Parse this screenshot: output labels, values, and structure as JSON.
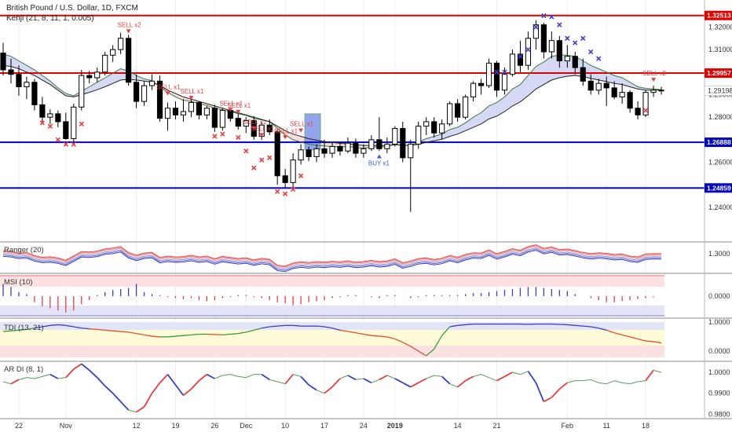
{
  "header": {
    "symbol": "British Pound / U.S. Dollar, 1D, FXCM",
    "indicator": "Kenji (21, 8, 11, 1, 0.005)"
  },
  "colors": {
    "bull": "#000000",
    "bear": "#000000",
    "red_line": "#e00000",
    "blue_line": "#0000c0",
    "sell_signal": "#e04040",
    "buy_signal": "#4060c0",
    "cross_red": "#e04040",
    "cross_blue": "#4040c0",
    "grid": "#eeeeee"
  },
  "chart_data": {
    "type": "candlestick",
    "price_axis": {
      "min": 1.225,
      "max": 1.332,
      "ticks": [
        "1.32000",
        "1.31000",
        "1.29000",
        "1.28000",
        "1.26000",
        "1.24000"
      ]
    },
    "x_axis": {
      "labels": [
        "22",
        "Nov",
        "12",
        "19",
        "26",
        "Dec",
        "10",
        "17",
        "24",
        "2019",
        "14",
        "21",
        "Feb",
        "11",
        "18"
      ],
      "label_positions": [
        2,
        8,
        17,
        22,
        27,
        31,
        36,
        41,
        46,
        50,
        58,
        63,
        72,
        77,
        82
      ]
    },
    "candles": [
      [
        1.3085,
        1.313,
        1.2985,
        1.301
      ],
      [
        1.301,
        1.306,
        1.295,
        1.299
      ],
      [
        1.299,
        1.303,
        1.2895,
        1.2935
      ],
      [
        1.2935,
        1.298,
        1.288,
        1.2955
      ],
      [
        1.2955,
        1.297,
        1.283,
        1.2855
      ],
      [
        1.2855,
        1.289,
        1.278,
        1.28
      ],
      [
        1.28,
        1.2835,
        1.277,
        1.2815
      ],
      [
        1.2815,
        1.283,
        1.2755,
        1.278
      ],
      [
        1.278,
        1.282,
        1.27,
        1.2705
      ],
      [
        1.2705,
        1.286,
        1.269,
        1.2845
      ],
      [
        1.2845,
        1.301,
        1.283,
        1.2985
      ],
      [
        1.2985,
        1.3005,
        1.295,
        1.2975
      ],
      [
        1.2975,
        1.302,
        1.2955,
        1.3
      ],
      [
        1.3,
        1.309,
        1.2985,
        1.3075
      ],
      [
        1.3075,
        1.312,
        1.3045,
        1.31
      ],
      [
        1.31,
        1.3175,
        1.308,
        1.315
      ],
      [
        1.315,
        1.3165,
        1.294,
        1.2955
      ],
      [
        1.2955,
        1.299,
        1.284,
        1.287
      ],
      [
        1.287,
        1.296,
        1.285,
        1.294
      ],
      [
        1.294,
        1.299,
        1.292,
        1.296
      ],
      [
        1.296,
        1.2985,
        1.278,
        1.2795
      ],
      [
        1.2795,
        1.2865,
        1.274,
        1.284
      ],
      [
        1.284,
        1.287,
        1.279,
        1.281
      ],
      [
        1.281,
        1.288,
        1.278,
        1.2825
      ],
      [
        1.2825,
        1.2895,
        1.28,
        1.2865
      ],
      [
        1.2865,
        1.287,
        1.279,
        1.281
      ],
      [
        1.281,
        1.285,
        1.279,
        1.284
      ],
      [
        1.284,
        1.2855,
        1.2735,
        1.2755
      ],
      [
        1.2755,
        1.284,
        1.274,
        1.283
      ],
      [
        1.283,
        1.284,
        1.278,
        1.2795
      ],
      [
        1.2795,
        1.283,
        1.2745,
        1.276
      ],
      [
        1.276,
        1.28,
        1.273,
        1.2785
      ],
      [
        1.2785,
        1.2805,
        1.27,
        1.2715
      ],
      [
        1.2715,
        1.278,
        1.27,
        1.2765
      ],
      [
        1.2765,
        1.279,
        1.272,
        1.2735
      ],
      [
        1.2735,
        1.2745,
        1.25,
        1.254
      ],
      [
        1.254,
        1.257,
        1.2485,
        1.251
      ],
      [
        1.251,
        1.264,
        1.249,
        1.261
      ],
      [
        1.261,
        1.268,
        1.259,
        1.2655
      ],
      [
        1.2655,
        1.267,
        1.2605,
        1.2625
      ],
      [
        1.2625,
        1.268,
        1.26,
        1.266
      ],
      [
        1.266,
        1.27,
        1.262,
        1.264
      ],
      [
        1.264,
        1.269,
        1.262,
        1.267
      ],
      [
        1.267,
        1.269,
        1.263,
        1.265
      ],
      [
        1.265,
        1.271,
        1.264,
        1.2685
      ],
      [
        1.2685,
        1.2705,
        1.262,
        1.264
      ],
      [
        1.264,
        1.268,
        1.262,
        1.266
      ],
      [
        1.266,
        1.272,
        1.265,
        1.27
      ],
      [
        1.27,
        1.28,
        1.265,
        1.266
      ],
      [
        1.266,
        1.271,
        1.264,
        1.268
      ],
      [
        1.268,
        1.276,
        1.267,
        1.275
      ],
      [
        1.275,
        1.278,
        1.26,
        1.262
      ],
      [
        1.262,
        1.27,
        1.238,
        1.268
      ],
      [
        1.268,
        1.278,
        1.266,
        1.276
      ],
      [
        1.276,
        1.28,
        1.272,
        1.278
      ],
      [
        1.278,
        1.28,
        1.271,
        1.273
      ],
      [
        1.273,
        1.279,
        1.27,
        1.277
      ],
      [
        1.277,
        1.287,
        1.276,
        1.286
      ],
      [
        1.286,
        1.288,
        1.278,
        1.28
      ],
      [
        1.28,
        1.29,
        1.279,
        1.289
      ],
      [
        1.289,
        1.296,
        1.287,
        1.295
      ],
      [
        1.295,
        1.297,
        1.29,
        1.294
      ],
      [
        1.294,
        1.306,
        1.293,
        1.304
      ],
      [
        1.304,
        1.305,
        1.289,
        1.292
      ],
      [
        1.292,
        1.302,
        1.29,
        1.299
      ],
      [
        1.299,
        1.31,
        1.298,
        1.308
      ],
      [
        1.308,
        1.314,
        1.3,
        1.303
      ],
      [
        1.303,
        1.318,
        1.301,
        1.315
      ],
      [
        1.315,
        1.323,
        1.31,
        1.321
      ],
      [
        1.321,
        1.322,
        1.306,
        1.309
      ],
      [
        1.309,
        1.318,
        1.306,
        1.314
      ],
      [
        1.314,
        1.316,
        1.302,
        1.305
      ],
      [
        1.305,
        1.312,
        1.302,
        1.307
      ],
      [
        1.307,
        1.309,
        1.299,
        1.302
      ],
      [
        1.302,
        1.306,
        1.294,
        1.296
      ],
      [
        1.296,
        1.299,
        1.29,
        1.292
      ],
      [
        1.292,
        1.297,
        1.29,
        1.295
      ],
      [
        1.295,
        1.298,
        1.285,
        1.293
      ],
      [
        1.293,
        1.296,
        1.288,
        1.289
      ],
      [
        1.289,
        1.295,
        1.286,
        1.291
      ],
      [
        1.291,
        1.292,
        1.282,
        1.284
      ],
      [
        1.284,
        1.287,
        1.279,
        1.281
      ],
      [
        1.281,
        1.292,
        1.28,
        1.291
      ],
      [
        1.291,
        1.294,
        1.289,
        1.292
      ],
      [
        1.292,
        1.2935,
        1.29,
        1.2918
      ]
    ],
    "kenji_fast": [
      1.308,
      1.307,
      1.305,
      1.303,
      1.301,
      1.2985,
      1.296,
      1.293,
      1.2905,
      1.2895,
      1.2915,
      1.2935,
      1.2955,
      1.2975,
      1.2995,
      1.3015,
      1.3005,
      1.2985,
      1.297,
      1.2962,
      1.2935,
      1.291,
      1.289,
      1.2875,
      1.287,
      1.286,
      1.2852,
      1.284,
      1.2832,
      1.2825,
      1.2815,
      1.2808,
      1.2795,
      1.2788,
      1.278,
      1.275,
      1.272,
      1.27,
      1.269,
      1.268,
      1.2675,
      1.2672,
      1.267,
      1.2668,
      1.267,
      1.2665,
      1.2662,
      1.2668,
      1.2668,
      1.267,
      1.268,
      1.2675,
      1.2675,
      1.269,
      1.2705,
      1.2715,
      1.2725,
      1.2745,
      1.2755,
      1.2775,
      1.28,
      1.282,
      1.285,
      1.2865,
      1.289,
      1.2925,
      1.2945,
      1.2985,
      1.3025,
      1.3045,
      1.307,
      1.3075,
      1.3075,
      1.307,
      1.305,
      1.303,
      1.3015,
      1.3,
      1.2985,
      1.2975,
      1.2955,
      1.2935,
      1.2928,
      1.2925,
      1.2922
    ],
    "kenji_slow": [
      1.303,
      1.3025,
      1.3015,
      1.3,
      1.2985,
      1.2965,
      1.2945,
      1.292,
      1.2895,
      1.289,
      1.29,
      1.291,
      1.2922,
      1.2935,
      1.295,
      1.2965,
      1.2968,
      1.2965,
      1.296,
      1.2955,
      1.294,
      1.292,
      1.2905,
      1.289,
      1.288,
      1.287,
      1.286,
      1.285,
      1.284,
      1.283,
      1.282,
      1.281,
      1.28,
      1.279,
      1.278,
      1.276,
      1.274,
      1.2725,
      1.2715,
      1.2705,
      1.2698,
      1.2692,
      1.2688,
      1.2684,
      1.2682,
      1.2678,
      1.2675,
      1.2675,
      1.2674,
      1.2674,
      1.2678,
      1.2676,
      1.2675,
      1.268,
      1.2688,
      1.2695,
      1.2702,
      1.2715,
      1.2725,
      1.274,
      1.2755,
      1.277,
      1.2792,
      1.2805,
      1.2825,
      1.285,
      1.2868,
      1.2895,
      1.2925,
      1.2945,
      1.2965,
      1.2975,
      1.2982,
      1.2985,
      1.298,
      1.2972,
      1.2965,
      1.2958,
      1.295,
      1.2945,
      1.2935,
      1.2925,
      1.292,
      1.292,
      1.2921
    ],
    "levels": [
      {
        "price": 1.32513,
        "label": "1.32513",
        "color": "red"
      },
      {
        "price": 1.29957,
        "label": "1.29957",
        "color": "red"
      },
      {
        "price": 1.26888,
        "label": "1.26888",
        "color": "blue"
      },
      {
        "price": 1.24859,
        "label": "1.24859",
        "color": "blue"
      }
    ],
    "current_price_label": "1.29198",
    "signals": [
      {
        "index": 16,
        "text": "SELL x2",
        "price": 1.32,
        "type": "sell"
      },
      {
        "index": 21,
        "text": "SELL x1",
        "price": 1.2925,
        "type": "sell"
      },
      {
        "index": 24,
        "text": "SELL x1",
        "price": 1.2905,
        "type": "sell"
      },
      {
        "index": 29,
        "text": "SELL x1",
        "price": 1.2852,
        "type": "sell"
      },
      {
        "index": 30,
        "text": "SELL x1",
        "price": 1.2843,
        "type": "sell"
      },
      {
        "index": 32,
        "text": "SELL x1",
        "price": 1.277,
        "type": "sell"
      },
      {
        "index": 33,
        "text": "SELL x1",
        "price": 1.274,
        "type": "sell"
      },
      {
        "index": 36,
        "text": "SELL x1",
        "price": 1.273,
        "type": "sell"
      },
      {
        "index": 38,
        "text": "SELL x1",
        "price": 1.276,
        "type": "sell"
      },
      {
        "index": 48,
        "text": "BUY x1",
        "price": 1.2635,
        "type": "buy"
      },
      {
        "index": 83,
        "text": "SELL x2",
        "price": 1.2985,
        "type": "sell"
      }
    ],
    "highlight_boxes": [
      {
        "start": 39,
        "end": 40,
        "top": 1.2815,
        "bottom": 1.2655
      }
    ],
    "red_crosses": [
      [
        5,
        1.2775
      ],
      [
        6,
        1.276
      ],
      [
        7,
        1.27
      ],
      [
        8,
        1.268
      ],
      [
        9,
        1.268
      ],
      [
        10,
        1.277
      ],
      [
        27,
        1.2715
      ],
      [
        28,
        1.2725
      ],
      [
        30,
        1.271
      ],
      [
        31,
        1.265
      ],
      [
        32,
        1.2575
      ],
      [
        33,
        1.261
      ],
      [
        34,
        1.262
      ],
      [
        35,
        1.247
      ],
      [
        36,
        1.246
      ],
      [
        37,
        1.248
      ],
      [
        38,
        1.254
      ],
      [
        82,
        1.283
      ]
    ],
    "blue_crosses": [
      [
        63,
        1.3
      ],
      [
        64,
        1.3
      ],
      [
        66,
        1.307
      ],
      [
        67,
        1.31
      ],
      [
        68,
        1.32
      ],
      [
        69,
        1.325
      ],
      [
        70,
        1.3245
      ],
      [
        71,
        1.321
      ],
      [
        72,
        1.315
      ],
      [
        73,
        1.313
      ],
      [
        74,
        1.315
      ],
      [
        75,
        1.309
      ],
      [
        76,
        1.306
      ]
    ],
    "panes": {
      "ranger": {
        "title": "Ranger (20)",
        "tick": "1.3000"
      },
      "msi": {
        "title": "MSI (10)",
        "tick": "0.0000"
      },
      "tdi": {
        "title": "TDI (13, 21)",
        "ticks": [
          "1.0000",
          "0.0000"
        ]
      },
      "ardi": {
        "title": "AR DI (8, 1)",
        "ticks": [
          "1.0000",
          "0.9900",
          "0.9800"
        ]
      }
    },
    "msi_values": [
      0.6,
      0.45,
      0.2,
      0.1,
      -0.3,
      -0.5,
      -0.6,
      -0.7,
      -0.8,
      -0.7,
      -0.4,
      -0.2,
      0.05,
      0.2,
      0.3,
      0.35,
      0.4,
      0.6,
      0.2,
      0.1,
      0.05,
      -0.05,
      -0.1,
      -0.15,
      -0.1,
      -0.2,
      -0.25,
      -0.2,
      -0.1,
      -0.05,
      0.05,
      0.05,
      -0.05,
      -0.1,
      -0.2,
      -0.3,
      -0.35,
      -0.45,
      -0.4,
      -0.3,
      -0.25,
      -0.2,
      -0.1,
      -0.05,
      0.05,
      0.05,
      0.0,
      -0.05,
      -0.1,
      0.05,
      0.05,
      0.0,
      -0.1,
      -0.05,
      0.05,
      0.05,
      0.05,
      0.05,
      0.05,
      0.1,
      0.15,
      0.15,
      0.2,
      0.25,
      0.3,
      0.35,
      0.4,
      0.45,
      0.45,
      0.4,
      0.35,
      0.3,
      0.25,
      0.1,
      0.0,
      -0.1,
      -0.2,
      -0.3,
      -0.3,
      -0.25,
      -0.2,
      -0.15,
      -0.1,
      -0.05,
      0.0
    ],
    "tdi_values": [
      0.72,
      0.74,
      0.76,
      0.78,
      0.82,
      0.86,
      0.9,
      0.92,
      0.9,
      0.86,
      0.82,
      0.8,
      0.78,
      0.76,
      0.74,
      0.72,
      0.7,
      0.66,
      0.62,
      0.58,
      0.56,
      0.56,
      0.58,
      0.6,
      0.62,
      0.64,
      0.64,
      0.63,
      0.62,
      0.64,
      0.66,
      0.7,
      0.76,
      0.82,
      0.86,
      0.88,
      0.9,
      0.9,
      0.88,
      0.88,
      0.88,
      0.86,
      0.82,
      0.76,
      0.72,
      0.68,
      0.64,
      0.6,
      0.58,
      0.56,
      0.5,
      0.4,
      0.28,
      0.14,
      0.0,
      0.2,
      0.6,
      0.86,
      0.9,
      0.92,
      0.94,
      0.94,
      0.94,
      0.94,
      0.94,
      0.94,
      0.94,
      0.93,
      0.94,
      0.94,
      0.94,
      0.93,
      0.92,
      0.9,
      0.88,
      0.86,
      0.82,
      0.76,
      0.68,
      0.62,
      0.56,
      0.5,
      0.44,
      0.42,
      0.38
    ],
    "ardi_values": [
      0.9955,
      0.9945,
      0.9965,
      0.9975,
      0.997,
      0.998,
      0.999,
      0.997,
      0.9975,
      1.0015,
      1.004,
      1.001,
      0.9975,
      0.9935,
      0.99,
      0.986,
      0.982,
      0.981,
      0.9835,
      0.99,
      0.995,
      0.999,
      0.994,
      0.989,
      0.992,
      0.996,
      0.999,
      0.997,
      0.9985,
      0.999,
      0.998,
      0.9975,
      0.999,
      0.999,
      0.9965,
      0.9955,
      0.9945,
      0.999,
      0.998,
      0.994,
      0.9915,
      0.99,
      0.993,
      0.997,
      0.9985,
      0.9965,
      0.997,
      0.995,
      0.9965,
      0.9985,
      0.997,
      0.995,
      0.993,
      0.995,
      0.997,
      0.9985,
      0.998,
      0.9945,
      0.993,
      0.996,
      0.998,
      0.999,
      0.9975,
      0.996,
      0.998,
      1.0,
      0.999,
      1.0005,
      0.995,
      0.986,
      0.988,
      0.992,
      0.995,
      0.996,
      0.996,
      0.9965,
      0.995,
      0.9945,
      0.996,
      0.995,
      0.9945,
      0.9955,
      0.996,
      1.001,
      1.0
    ]
  }
}
